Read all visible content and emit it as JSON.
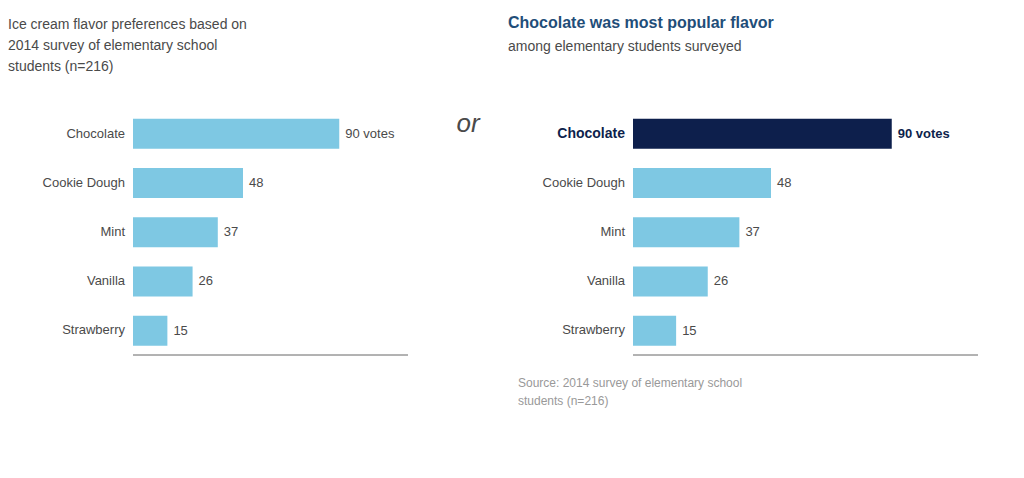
{
  "chart_data": [
    {
      "type": "bar",
      "orientation": "horizontal",
      "title": "Ice cream flavor preferences based on\n2014 survey of elementary school\nstudents (n=216)",
      "categories": [
        "Chocolate",
        "Cookie Dough",
        "Mint",
        "Vanilla",
        "Strawberry"
      ],
      "values": [
        90,
        48,
        37,
        26,
        15
      ],
      "value_labels": [
        "90 votes",
        "48",
        "37",
        "26",
        "15"
      ],
      "color": "#7EC8E3",
      "xlim": [
        0,
        120
      ],
      "data_labels": true,
      "tick_labels": "y",
      "annotations": [
        "or"
      ]
    },
    {
      "type": "bar",
      "orientation": "horizontal",
      "title": "Chocolate was most popular flavor",
      "subtitle": "among elementary students surveyed",
      "categories": [
        "Chocolate",
        "Cookie Dough",
        "Mint",
        "Vanilla",
        "Strawberry"
      ],
      "values": [
        90,
        48,
        37,
        26,
        15
      ],
      "value_labels": [
        "90 votes",
        "48",
        "37",
        "26",
        "15"
      ],
      "colors": [
        "#0D1F4C",
        "#7EC8E3",
        "#7EC8E3",
        "#7EC8E3",
        "#7EC8E3"
      ],
      "xlim": [
        0,
        120
      ],
      "data_labels": true,
      "tick_labels": "y",
      "annotations": [
        "Source: 2014 survey of elementary school\nstudents (n=216)"
      ]
    }
  ]
}
